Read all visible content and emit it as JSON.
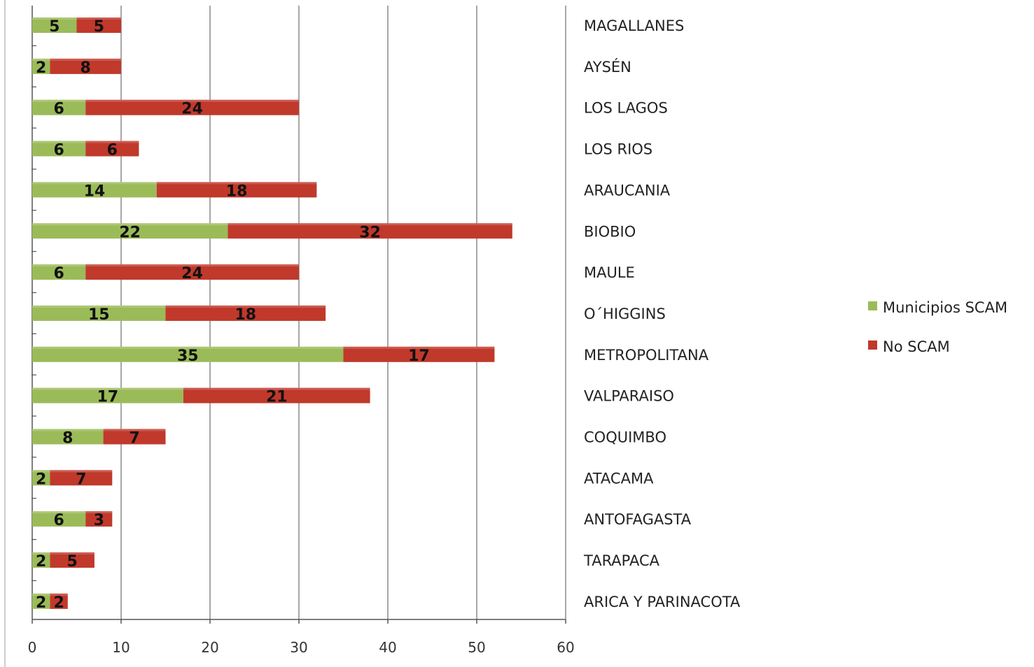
{
  "chart_data": {
    "type": "bar",
    "orientation": "horizontal",
    "stacked": true,
    "categories": [
      "MAGALLANES",
      "AYSÉN",
      "LOS LAGOS",
      "LOS RIOS",
      "ARAUCANIA",
      "BIOBIO",
      "MAULE",
      "O´HIGGINS",
      "METROPOLITANA",
      "VALPARAISO",
      "COQUIMBO",
      "ATACAMA",
      "ANTOFAGASTA",
      "TARAPACA",
      "ARICA Y PARINACOTA"
    ],
    "series": [
      {
        "name": "Municipios SCAM",
        "color": "#9bbb59",
        "values": [
          5,
          2,
          6,
          6,
          14,
          22,
          6,
          15,
          35,
          17,
          8,
          2,
          6,
          2,
          2
        ]
      },
      {
        "name": "No SCAM",
        "color": "#c0392b",
        "values": [
          5,
          8,
          24,
          6,
          18,
          32,
          24,
          18,
          17,
          21,
          7,
          7,
          3,
          5,
          2
        ]
      }
    ],
    "xlim": [
      0,
      60
    ],
    "xticks": [
      "0",
      "10",
      "20",
      "30",
      "40",
      "50",
      "60"
    ],
    "grid": true,
    "data_labels": true,
    "legend_position": "right"
  }
}
